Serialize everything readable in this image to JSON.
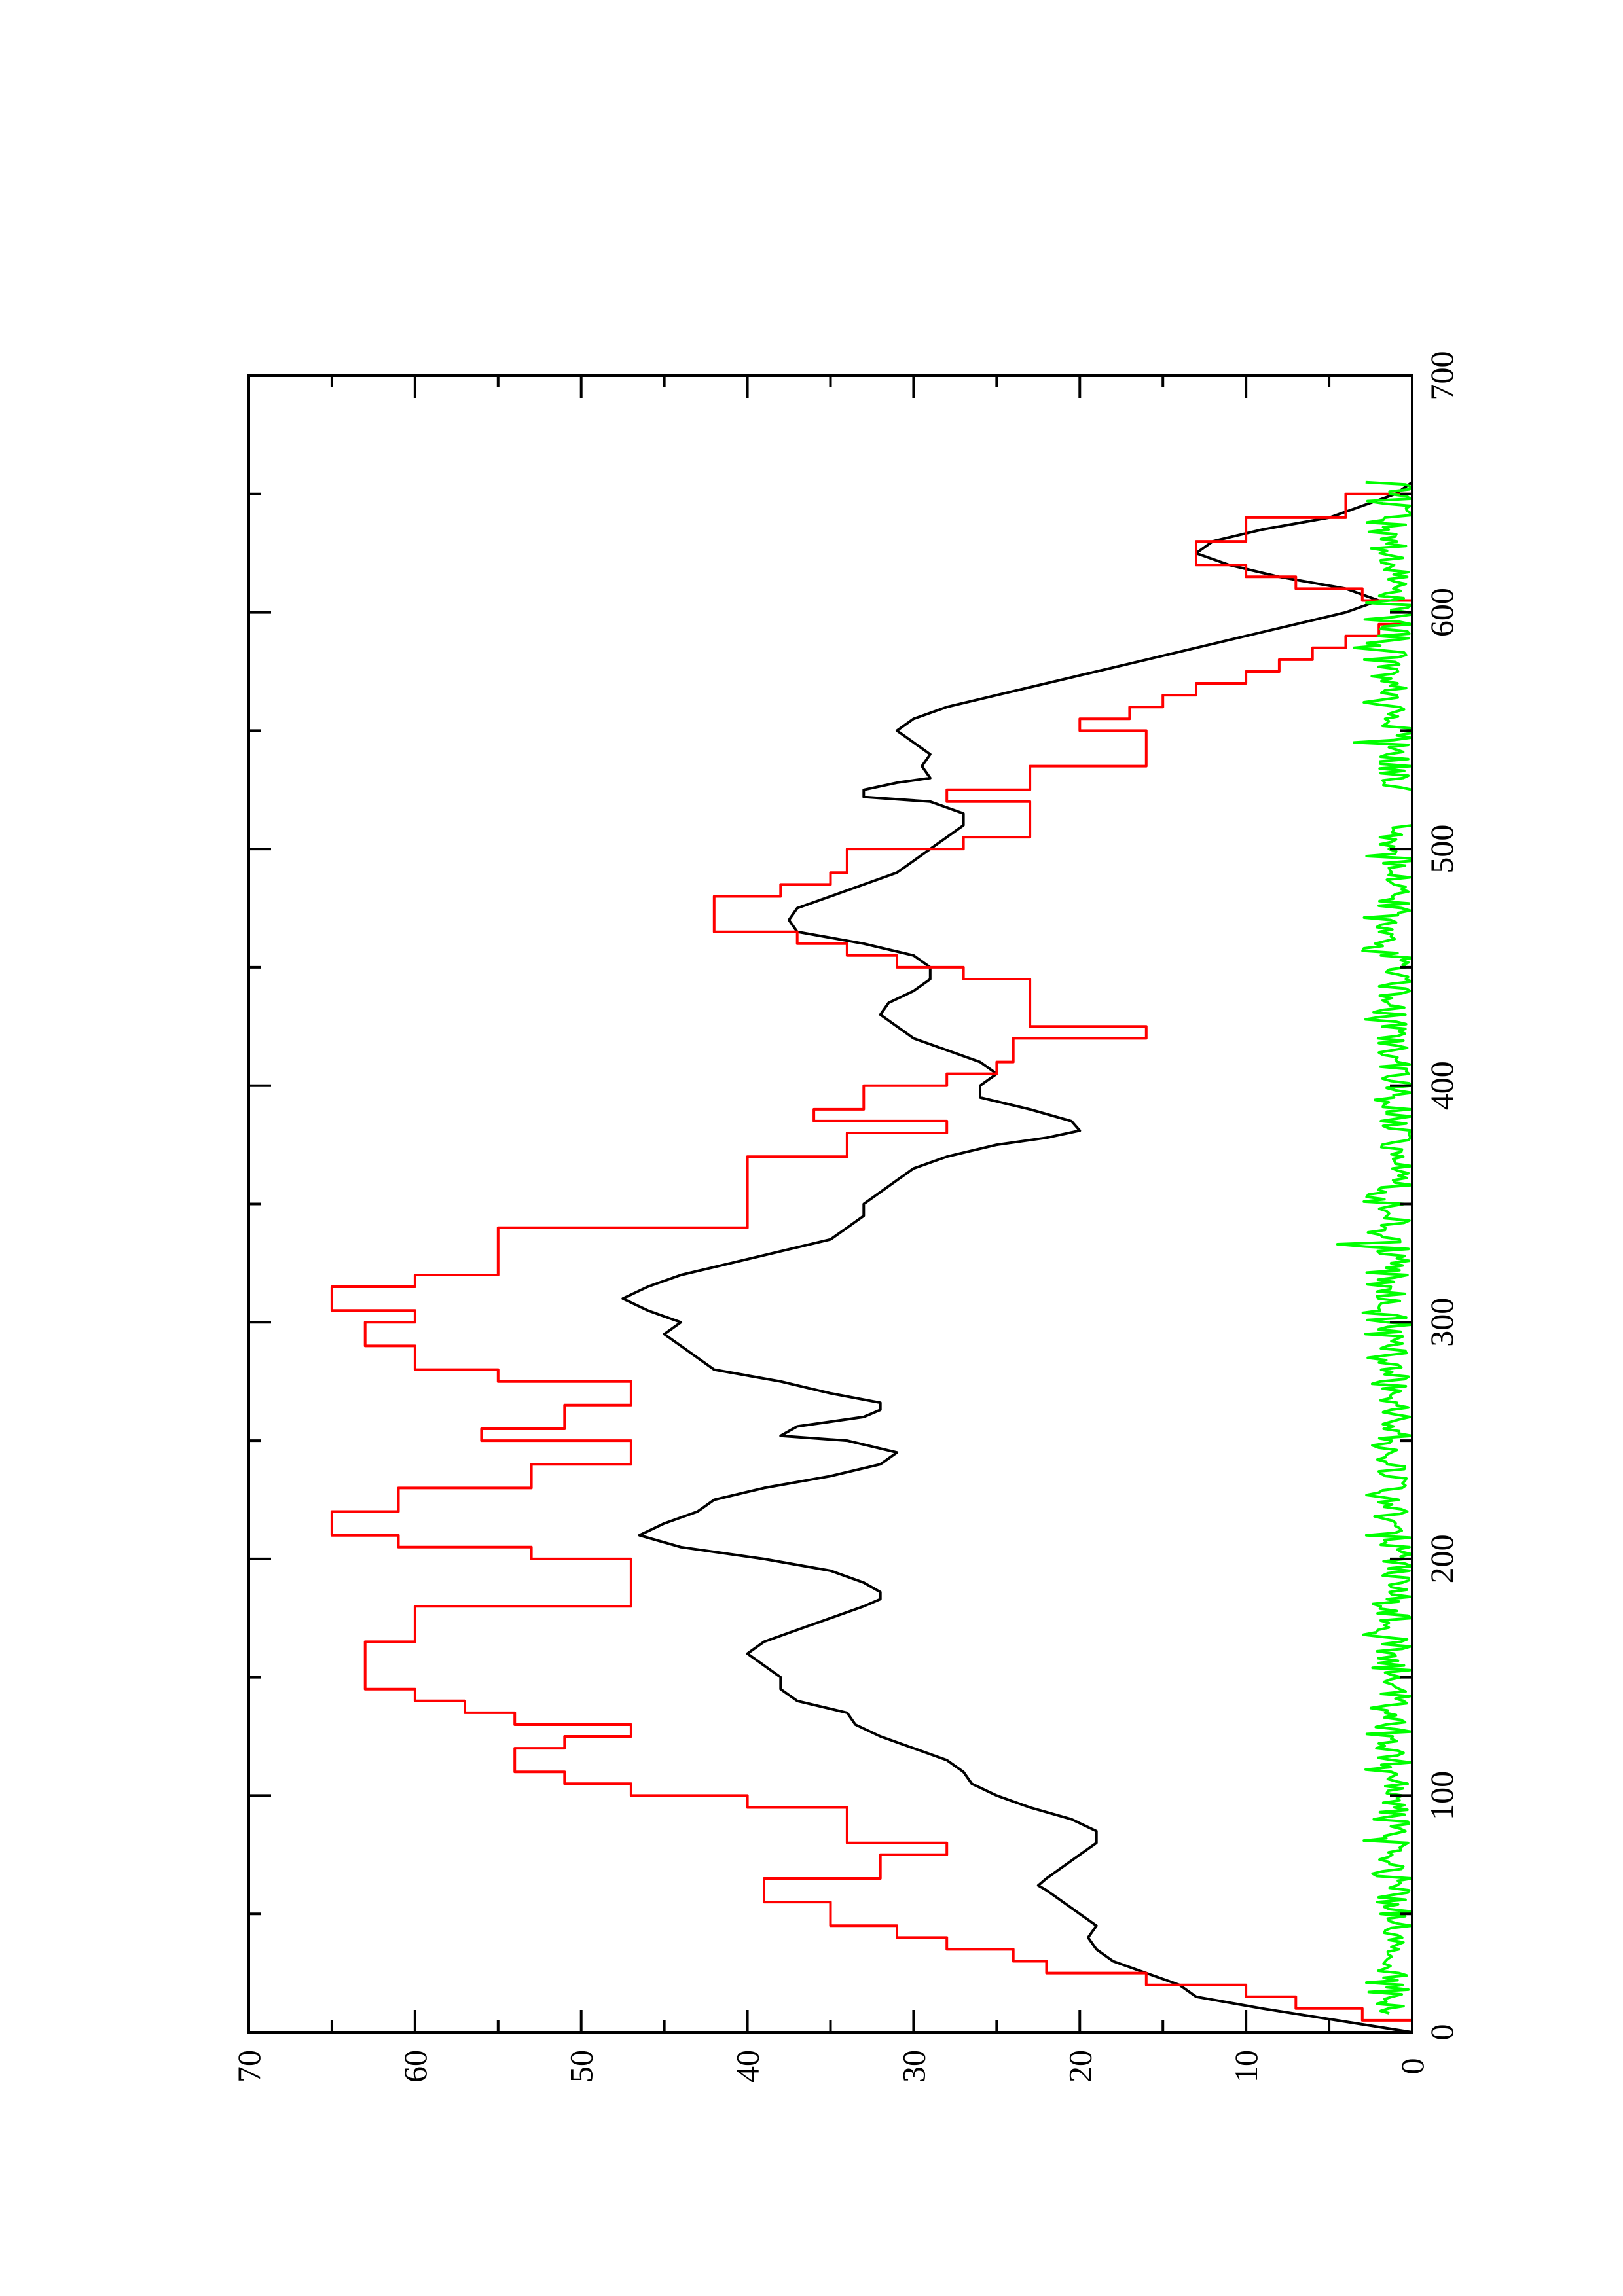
{
  "chart_data": {
    "type": "line",
    "orientation": "rotated-90-ccw",
    "title": "",
    "xlabel": "",
    "ylabel": "",
    "xlim": [
      0,
      700
    ],
    "ylim": [
      0,
      70
    ],
    "x_ticks": [
      0,
      100,
      200,
      300,
      400,
      500,
      600,
      700
    ],
    "x_tick_labels": [
      "0",
      "100",
      "200",
      "300",
      "400",
      "500",
      "600",
      "700"
    ],
    "x_minor_step": 50,
    "y_ticks": [
      0,
      10,
      20,
      30,
      40,
      50,
      60,
      70
    ],
    "y_tick_labels": [
      "0",
      "10",
      "20",
      "30",
      "40",
      "50",
      "60",
      "70"
    ],
    "y_minor_step": 5,
    "grid": false,
    "legend": "none",
    "series": [
      {
        "color": "#000000",
        "step": false,
        "points": [
          [
            0,
            0
          ],
          [
            10,
            9
          ],
          [
            15,
            13
          ],
          [
            20,
            14
          ],
          [
            25,
            16
          ],
          [
            30,
            18
          ],
          [
            35,
            19
          ],
          [
            40,
            19.5
          ],
          [
            45,
            19
          ],
          [
            50,
            20
          ],
          [
            55,
            21
          ],
          [
            60,
            22
          ],
          [
            62,
            22.5
          ],
          [
            65,
            22
          ],
          [
            70,
            21
          ],
          [
            75,
            20
          ],
          [
            80,
            19
          ],
          [
            85,
            19
          ],
          [
            90,
            20.5
          ],
          [
            95,
            23
          ],
          [
            100,
            25
          ],
          [
            105,
            26.5
          ],
          [
            110,
            27
          ],
          [
            115,
            28
          ],
          [
            120,
            30
          ],
          [
            125,
            32
          ],
          [
            130,
            33.5
          ],
          [
            135,
            34
          ],
          [
            140,
            37
          ],
          [
            145,
            38
          ],
          [
            150,
            38
          ],
          [
            155,
            39
          ],
          [
            160,
            40
          ],
          [
            165,
            39
          ],
          [
            170,
            37
          ],
          [
            175,
            35
          ],
          [
            180,
            33
          ],
          [
            183,
            32
          ],
          [
            186,
            32
          ],
          [
            190,
            33
          ],
          [
            195,
            35
          ],
          [
            200,
            39
          ],
          [
            205,
            44
          ],
          [
            210,
            46.5
          ],
          [
            215,
            45
          ],
          [
            220,
            43
          ],
          [
            225,
            42
          ],
          [
            230,
            39
          ],
          [
            235,
            35
          ],
          [
            240,
            32
          ],
          [
            245,
            31
          ],
          [
            250,
            34
          ],
          [
            252,
            38
          ],
          [
            256,
            37
          ],
          [
            260,
            33
          ],
          [
            263,
            32
          ],
          [
            266,
            32
          ],
          [
            270,
            35
          ],
          [
            275,
            38
          ],
          [
            280,
            42
          ],
          [
            285,
            43
          ],
          [
            290,
            44
          ],
          [
            295,
            45
          ],
          [
            300,
            44
          ],
          [
            305,
            46
          ],
          [
            310,
            47.5
          ],
          [
            315,
            46
          ],
          [
            320,
            44
          ],
          [
            325,
            41
          ],
          [
            330,
            38
          ],
          [
            335,
            35
          ],
          [
            340,
            34
          ],
          [
            345,
            33
          ],
          [
            350,
            33
          ],
          [
            355,
            32
          ],
          [
            360,
            31
          ],
          [
            365,
            30
          ],
          [
            370,
            28
          ],
          [
            375,
            25
          ],
          [
            378,
            22
          ],
          [
            381,
            20
          ],
          [
            385,
            20.5
          ],
          [
            390,
            23
          ],
          [
            395,
            26
          ],
          [
            400,
            26
          ],
          [
            405,
            25
          ],
          [
            410,
            26
          ],
          [
            415,
            28
          ],
          [
            420,
            30
          ],
          [
            425,
            31
          ],
          [
            430,
            32
          ],
          [
            435,
            31.5
          ],
          [
            440,
            30
          ],
          [
            445,
            29
          ],
          [
            450,
            29
          ],
          [
            455,
            30
          ],
          [
            460,
            33
          ],
          [
            465,
            37
          ],
          [
            470,
            37.5
          ],
          [
            475,
            37
          ],
          [
            480,
            35
          ],
          [
            485,
            33
          ],
          [
            490,
            31
          ],
          [
            495,
            30
          ],
          [
            500,
            29
          ],
          [
            505,
            28
          ],
          [
            510,
            27
          ],
          [
            515,
            27
          ],
          [
            520,
            29
          ],
          [
            522,
            33
          ],
          [
            525,
            33
          ],
          [
            528,
            31
          ],
          [
            530,
            29
          ],
          [
            535,
            29.5
          ],
          [
            540,
            29
          ],
          [
            545,
            30
          ],
          [
            550,
            31
          ],
          [
            555,
            30
          ],
          [
            560,
            28
          ],
          [
            565,
            25
          ],
          [
            570,
            22
          ],
          [
            575,
            19
          ],
          [
            580,
            16
          ],
          [
            585,
            13
          ],
          [
            590,
            10
          ],
          [
            595,
            7
          ],
          [
            600,
            4
          ],
          [
            605,
            2
          ],
          [
            610,
            4
          ],
          [
            615,
            8
          ],
          [
            620,
            11
          ],
          [
            625,
            13
          ],
          [
            630,
            12
          ],
          [
            635,
            9
          ],
          [
            640,
            5
          ],
          [
            645,
            3
          ],
          [
            650,
            1
          ],
          [
            655,
            0
          ]
        ]
      },
      {
        "color": "#ff0000",
        "step": true,
        "points": [
          [
            0,
            0
          ],
          [
            5,
            3
          ],
          [
            10,
            7
          ],
          [
            15,
            10
          ],
          [
            20,
            16
          ],
          [
            25,
            22
          ],
          [
            30,
            24
          ],
          [
            35,
            28
          ],
          [
            40,
            31
          ],
          [
            45,
            35
          ],
          [
            55,
            39
          ],
          [
            65,
            32
          ],
          [
            75,
            28
          ],
          [
            80,
            34
          ],
          [
            90,
            34
          ],
          [
            95,
            40
          ],
          [
            100,
            47
          ],
          [
            105,
            51
          ],
          [
            110,
            54
          ],
          [
            120,
            51
          ],
          [
            125,
            47
          ],
          [
            130,
            54
          ],
          [
            135,
            57
          ],
          [
            140,
            60
          ],
          [
            145,
            63
          ],
          [
            165,
            60
          ],
          [
            180,
            47
          ],
          [
            190,
            47
          ],
          [
            200,
            53
          ],
          [
            205,
            61
          ],
          [
            210,
            65
          ],
          [
            220,
            61
          ],
          [
            230,
            53
          ],
          [
            240,
            47
          ],
          [
            250,
            56
          ],
          [
            255,
            51
          ],
          [
            265,
            47
          ],
          [
            275,
            55
          ],
          [
            280,
            60
          ],
          [
            290,
            63
          ],
          [
            300,
            60
          ],
          [
            305,
            65
          ],
          [
            315,
            60
          ],
          [
            320,
            55
          ],
          [
            340,
            40
          ],
          [
            365,
            40
          ],
          [
            370,
            34
          ],
          [
            380,
            28
          ],
          [
            385,
            36
          ],
          [
            390,
            33
          ],
          [
            400,
            28
          ],
          [
            405,
            25
          ],
          [
            410,
            24
          ],
          [
            420,
            16
          ],
          [
            425,
            23
          ],
          [
            440,
            23
          ],
          [
            445,
            27
          ],
          [
            450,
            31
          ],
          [
            455,
            34
          ],
          [
            460,
            37
          ],
          [
            465,
            42
          ],
          [
            480,
            38
          ],
          [
            485,
            35
          ],
          [
            490,
            34
          ],
          [
            500,
            27
          ],
          [
            505,
            23
          ],
          [
            515,
            23
          ],
          [
            520,
            28
          ],
          [
            525,
            23
          ],
          [
            535,
            16
          ],
          [
            545,
            16
          ],
          [
            550,
            20
          ],
          [
            555,
            17
          ],
          [
            560,
            15
          ],
          [
            565,
            13
          ],
          [
            570,
            10
          ],
          [
            575,
            8
          ],
          [
            580,
            6
          ],
          [
            585,
            4
          ],
          [
            590,
            2
          ],
          [
            595,
            0
          ],
          [
            605,
            3
          ],
          [
            610,
            7
          ],
          [
            615,
            10
          ],
          [
            620,
            13
          ],
          [
            630,
            10
          ],
          [
            640,
            4
          ],
          [
            650,
            0
          ]
        ]
      },
      {
        "color": "#00ff00",
        "step": false,
        "noise_envelope": true,
        "x_range": [
          8,
          655
        ],
        "y_range": [
          0,
          3
        ],
        "peaks": [
          [
            333,
            4.5
          ],
          [
            545,
            3.5
          ],
          [
            585,
            3.5
          ]
        ],
        "gaps": [
          [
            510,
            525
          ]
        ]
      }
    ]
  }
}
